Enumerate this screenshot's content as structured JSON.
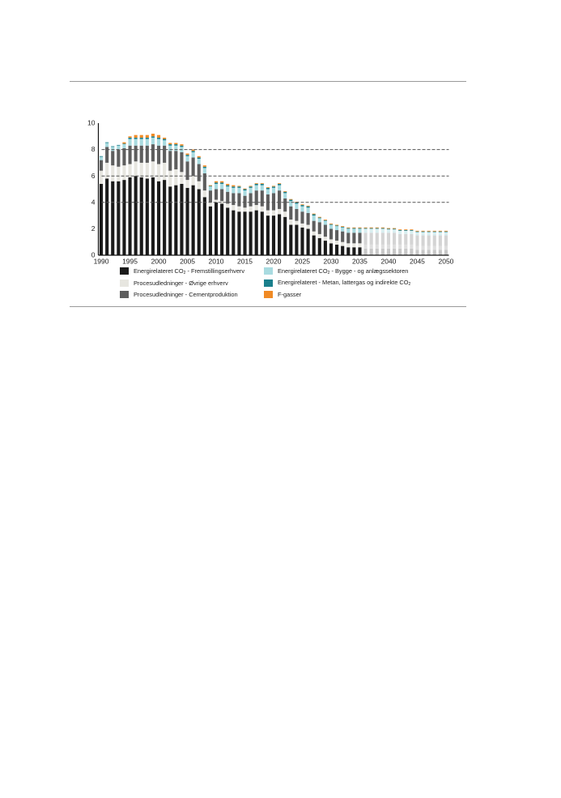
{
  "colors": {
    "fremstilling": "#1a1a1a",
    "oevrige": "#e7e6e0",
    "cement": "#5e5e5e",
    "bygge": "#a9dbe0",
    "metan": "#1a7f8c",
    "fgas": "#f08a24",
    "proj_fremstilling": "#c8c8c8",
    "proj_oevrige": "#dedede",
    "proj_cement": "#d4d4d4",
    "proj_bygge": "#d8eef0"
  },
  "legend": [
    {
      "key": "fremstilling",
      "pre": "Energirelateret CO",
      "sub": "2",
      "post": " - Fremstillingserhverv"
    },
    {
      "key": "bygge",
      "pre": "Energirelateret CO",
      "sub": "2",
      "post": " - Bygge - og anlægssektoren"
    },
    {
      "key": "oevrige",
      "pre": "Procesudledninger - Øvrige erhverv",
      "sub": "",
      "post": ""
    },
    {
      "key": "metan",
      "pre": "Energirelateret - Metan, lattergas og indirekte CO",
      "sub": "2",
      "post": ""
    },
    {
      "key": "cement",
      "pre": "Procesudledninger - Cementproduktion",
      "sub": "",
      "post": ""
    },
    {
      "key": "fgas",
      "pre": "F-gasser",
      "sub": "",
      "post": ""
    }
  ],
  "chart_data": {
    "type": "bar",
    "stacked": true,
    "ylim": [
      0,
      10
    ],
    "yticks": [
      0,
      2,
      4,
      6,
      8,
      10
    ],
    "xticks": [
      1990,
      1995,
      2000,
      2005,
      2010,
      2015,
      2020,
      2025,
      2030,
      2035,
      2040,
      2045,
      2050
    ],
    "reference_lines": [
      4,
      6,
      8
    ],
    "projection_start_year": 2036,
    "series_order": [
      "fremstilling",
      "oevrige",
      "cement",
      "bygge",
      "metan",
      "fgas"
    ],
    "series_names": {
      "fremstilling": "Energirelateret CO2 - Fremstillingserhverv",
      "oevrige": "Procesudledninger - Øvrige erhverv",
      "cement": "Procesudledninger - Cementproduktion",
      "bygge": "Energirelateret CO2 - Bygge - og anlægssektoren",
      "metan": "Energirelateret - Metan, lattergas og indirekte CO2",
      "fgas": "F-gasser"
    },
    "bars": [
      {
        "year": 1990,
        "v": [
          5.4,
          1.0,
          0.8,
          0.25,
          0.05,
          0.0
        ]
      },
      {
        "year": 1991,
        "v": [
          5.8,
          1.2,
          1.2,
          0.3,
          0.05,
          0.0
        ]
      },
      {
        "year": 1992,
        "v": [
          5.6,
          1.2,
          1.1,
          0.3,
          0.05,
          0.0
        ]
      },
      {
        "year": 1993,
        "v": [
          5.6,
          1.1,
          1.3,
          0.3,
          0.05,
          0.0
        ]
      },
      {
        "year": 1994,
        "v": [
          5.7,
          1.1,
          1.3,
          0.3,
          0.05,
          0.1
        ]
      },
      {
        "year": 1995,
        "v": [
          5.9,
          1.0,
          1.4,
          0.5,
          0.1,
          0.1
        ]
      },
      {
        "year": 1996,
        "v": [
          6.0,
          1.1,
          1.2,
          0.5,
          0.1,
          0.2
        ]
      },
      {
        "year": 1997,
        "v": [
          5.9,
          1.1,
          1.3,
          0.5,
          0.1,
          0.2
        ]
      },
      {
        "year": 1998,
        "v": [
          5.8,
          1.2,
          1.3,
          0.5,
          0.1,
          0.2
        ]
      },
      {
        "year": 1999,
        "v": [
          5.9,
          1.2,
          1.3,
          0.5,
          0.1,
          0.2
        ]
      },
      {
        "year": 2000,
        "v": [
          5.6,
          1.3,
          1.4,
          0.5,
          0.1,
          0.2
        ]
      },
      {
        "year": 2001,
        "v": [
          5.7,
          1.3,
          1.3,
          0.4,
          0.1,
          0.1
        ]
      },
      {
        "year": 2002,
        "v": [
          5.2,
          1.2,
          1.5,
          0.4,
          0.1,
          0.1
        ]
      },
      {
        "year": 2003,
        "v": [
          5.3,
          1.2,
          1.4,
          0.4,
          0.1,
          0.1
        ]
      },
      {
        "year": 2004,
        "v": [
          5.4,
          0.9,
          1.5,
          0.4,
          0.1,
          0.1
        ]
      },
      {
        "year": 2005,
        "v": [
          5.1,
          0.6,
          1.4,
          0.4,
          0.1,
          0.1
        ]
      },
      {
        "year": 2006,
        "v": [
          5.3,
          0.7,
          1.4,
          0.4,
          0.1,
          0.1
        ]
      },
      {
        "year": 2007,
        "v": [
          5.0,
          0.6,
          1.3,
          0.4,
          0.1,
          0.1
        ]
      },
      {
        "year": 2008,
        "v": [
          4.4,
          0.5,
          1.3,
          0.4,
          0.1,
          0.1
        ]
      },
      {
        "year": 2009,
        "v": [
          3.7,
          0.3,
          0.9,
          0.3,
          0.05,
          0.05
        ]
      },
      {
        "year": 2010,
        "v": [
          4.0,
          0.2,
          0.8,
          0.4,
          0.1,
          0.1
        ]
      },
      {
        "year": 2011,
        "v": [
          3.9,
          0.2,
          0.9,
          0.4,
          0.1,
          0.1
        ]
      },
      {
        "year": 2012,
        "v": [
          3.6,
          0.3,
          0.9,
          0.4,
          0.1,
          0.1
        ]
      },
      {
        "year": 2013,
        "v": [
          3.4,
          0.4,
          0.9,
          0.4,
          0.1,
          0.1
        ]
      },
      {
        "year": 2014,
        "v": [
          3.3,
          0.4,
          1.0,
          0.4,
          0.1,
          0.05
        ]
      },
      {
        "year": 2015,
        "v": [
          3.3,
          0.3,
          0.9,
          0.4,
          0.1,
          0.05
        ]
      },
      {
        "year": 2016,
        "v": [
          3.3,
          0.4,
          1.0,
          0.4,
          0.1,
          0.05
        ]
      },
      {
        "year": 2017,
        "v": [
          3.4,
          0.4,
          1.1,
          0.4,
          0.1,
          0.05
        ]
      },
      {
        "year": 2018,
        "v": [
          3.3,
          0.4,
          1.2,
          0.4,
          0.1,
          0.05
        ]
      },
      {
        "year": 2019,
        "v": [
          3.0,
          0.4,
          1.2,
          0.4,
          0.1,
          0.05
        ]
      },
      {
        "year": 2020,
        "v": [
          3.0,
          0.4,
          1.3,
          0.4,
          0.1,
          0.05
        ]
      },
      {
        "year": 2021,
        "v": [
          3.1,
          0.4,
          1.4,
          0.4,
          0.1,
          0.05
        ]
      },
      {
        "year": 2022,
        "v": [
          2.9,
          0.4,
          1.0,
          0.4,
          0.1,
          0.05
        ]
      },
      {
        "year": 2023,
        "v": [
          2.3,
          0.4,
          1.0,
          0.4,
          0.1,
          0.05
        ]
      },
      {
        "year": 2024,
        "v": [
          2.3,
          0.3,
          0.9,
          0.4,
          0.1,
          0.05
        ]
      },
      {
        "year": 2025,
        "v": [
          2.1,
          0.3,
          0.9,
          0.4,
          0.1,
          0.05
        ]
      },
      {
        "year": 2026,
        "v": [
          2.0,
          0.3,
          0.9,
          0.4,
          0.1,
          0.05
        ]
      },
      {
        "year": 2027,
        "v": [
          1.5,
          0.3,
          0.8,
          0.4,
          0.1,
          0.05
        ]
      },
      {
        "year": 2028,
        "v": [
          1.3,
          0.3,
          0.9,
          0.3,
          0.05,
          0.05
        ]
      },
      {
        "year": 2029,
        "v": [
          1.1,
          0.3,
          0.9,
          0.3,
          0.05,
          0.05
        ]
      },
      {
        "year": 2030,
        "v": [
          0.9,
          0.3,
          0.8,
          0.3,
          0.05,
          0.05
        ]
      },
      {
        "year": 2031,
        "v": [
          0.8,
          0.3,
          0.8,
          0.3,
          0.05,
          0.05
        ]
      },
      {
        "year": 2032,
        "v": [
          0.7,
          0.3,
          0.8,
          0.3,
          0.05,
          0.05
        ]
      },
      {
        "year": 2033,
        "v": [
          0.6,
          0.3,
          0.8,
          0.3,
          0.05,
          0.05
        ]
      },
      {
        "year": 2034,
        "v": [
          0.6,
          0.3,
          0.8,
          0.3,
          0.05,
          0.05
        ]
      },
      {
        "year": 2035,
        "v": [
          0.6,
          0.3,
          0.8,
          0.3,
          0.05,
          0.05
        ]
      },
      {
        "year": 2036,
        "v": [
          0.5,
          0.3,
          0.9,
          0.3,
          0.05,
          0.05
        ]
      },
      {
        "year": 2037,
        "v": [
          0.5,
          0.3,
          0.9,
          0.3,
          0.05,
          0.05
        ]
      },
      {
        "year": 2038,
        "v": [
          0.5,
          0.3,
          0.9,
          0.3,
          0.05,
          0.05
        ]
      },
      {
        "year": 2039,
        "v": [
          0.5,
          0.3,
          0.9,
          0.3,
          0.05,
          0.05
        ]
      },
      {
        "year": 2040,
        "v": [
          0.5,
          0.3,
          0.9,
          0.25,
          0.05,
          0.05
        ]
      },
      {
        "year": 2041,
        "v": [
          0.5,
          0.3,
          0.9,
          0.25,
          0.05,
          0.05
        ]
      },
      {
        "year": 2042,
        "v": [
          0.5,
          0.3,
          0.8,
          0.25,
          0.05,
          0.05
        ]
      },
      {
        "year": 2043,
        "v": [
          0.5,
          0.3,
          0.8,
          0.25,
          0.05,
          0.05
        ]
      },
      {
        "year": 2044,
        "v": [
          0.5,
          0.3,
          0.8,
          0.25,
          0.05,
          0.05
        ]
      },
      {
        "year": 2045,
        "v": [
          0.4,
          0.3,
          0.8,
          0.25,
          0.05,
          0.05
        ]
      },
      {
        "year": 2046,
        "v": [
          0.4,
          0.3,
          0.8,
          0.25,
          0.05,
          0.05
        ]
      },
      {
        "year": 2047,
        "v": [
          0.4,
          0.3,
          0.8,
          0.25,
          0.05,
          0.05
        ]
      },
      {
        "year": 2048,
        "v": [
          0.4,
          0.3,
          0.8,
          0.25,
          0.05,
          0.05
        ]
      },
      {
        "year": 2049,
        "v": [
          0.4,
          0.3,
          0.8,
          0.25,
          0.05,
          0.05
        ]
      },
      {
        "year": 2050,
        "v": [
          0.4,
          0.3,
          0.8,
          0.25,
          0.05,
          0.05
        ]
      }
    ]
  }
}
